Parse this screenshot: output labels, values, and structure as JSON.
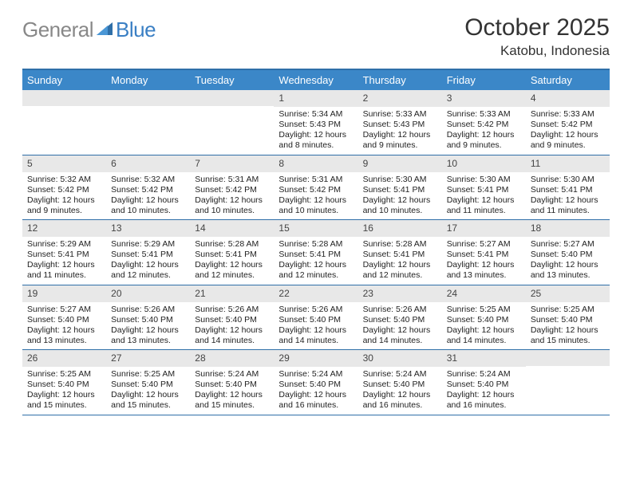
{
  "logo": {
    "text1": "General",
    "text2": "Blue"
  },
  "title": "October 2025",
  "location": "Katobu, Indonesia",
  "colors": {
    "header_blue": "#3b87c8",
    "border_blue": "#2f6fa8",
    "daynum_bg": "#e8e8e8",
    "logo_gray": "#888888",
    "logo_blue": "#3a7fc4"
  },
  "day_labels": [
    "Sunday",
    "Monday",
    "Tuesday",
    "Wednesday",
    "Thursday",
    "Friday",
    "Saturday"
  ],
  "weeks": [
    [
      {
        "num": "",
        "sunrise": "",
        "sunset": "",
        "daylight": ""
      },
      {
        "num": "",
        "sunrise": "",
        "sunset": "",
        "daylight": ""
      },
      {
        "num": "",
        "sunrise": "",
        "sunset": "",
        "daylight": ""
      },
      {
        "num": "1",
        "sunrise": "Sunrise: 5:34 AM",
        "sunset": "Sunset: 5:43 PM",
        "daylight": "Daylight: 12 hours and 8 minutes."
      },
      {
        "num": "2",
        "sunrise": "Sunrise: 5:33 AM",
        "sunset": "Sunset: 5:43 PM",
        "daylight": "Daylight: 12 hours and 9 minutes."
      },
      {
        "num": "3",
        "sunrise": "Sunrise: 5:33 AM",
        "sunset": "Sunset: 5:42 PM",
        "daylight": "Daylight: 12 hours and 9 minutes."
      },
      {
        "num": "4",
        "sunrise": "Sunrise: 5:33 AM",
        "sunset": "Sunset: 5:42 PM",
        "daylight": "Daylight: 12 hours and 9 minutes."
      }
    ],
    [
      {
        "num": "5",
        "sunrise": "Sunrise: 5:32 AM",
        "sunset": "Sunset: 5:42 PM",
        "daylight": "Daylight: 12 hours and 9 minutes."
      },
      {
        "num": "6",
        "sunrise": "Sunrise: 5:32 AM",
        "sunset": "Sunset: 5:42 PM",
        "daylight": "Daylight: 12 hours and 10 minutes."
      },
      {
        "num": "7",
        "sunrise": "Sunrise: 5:31 AM",
        "sunset": "Sunset: 5:42 PM",
        "daylight": "Daylight: 12 hours and 10 minutes."
      },
      {
        "num": "8",
        "sunrise": "Sunrise: 5:31 AM",
        "sunset": "Sunset: 5:42 PM",
        "daylight": "Daylight: 12 hours and 10 minutes."
      },
      {
        "num": "9",
        "sunrise": "Sunrise: 5:30 AM",
        "sunset": "Sunset: 5:41 PM",
        "daylight": "Daylight: 12 hours and 10 minutes."
      },
      {
        "num": "10",
        "sunrise": "Sunrise: 5:30 AM",
        "sunset": "Sunset: 5:41 PM",
        "daylight": "Daylight: 12 hours and 11 minutes."
      },
      {
        "num": "11",
        "sunrise": "Sunrise: 5:30 AM",
        "sunset": "Sunset: 5:41 PM",
        "daylight": "Daylight: 12 hours and 11 minutes."
      }
    ],
    [
      {
        "num": "12",
        "sunrise": "Sunrise: 5:29 AM",
        "sunset": "Sunset: 5:41 PM",
        "daylight": "Daylight: 12 hours and 11 minutes."
      },
      {
        "num": "13",
        "sunrise": "Sunrise: 5:29 AM",
        "sunset": "Sunset: 5:41 PM",
        "daylight": "Daylight: 12 hours and 12 minutes."
      },
      {
        "num": "14",
        "sunrise": "Sunrise: 5:28 AM",
        "sunset": "Sunset: 5:41 PM",
        "daylight": "Daylight: 12 hours and 12 minutes."
      },
      {
        "num": "15",
        "sunrise": "Sunrise: 5:28 AM",
        "sunset": "Sunset: 5:41 PM",
        "daylight": "Daylight: 12 hours and 12 minutes."
      },
      {
        "num": "16",
        "sunrise": "Sunrise: 5:28 AM",
        "sunset": "Sunset: 5:41 PM",
        "daylight": "Daylight: 12 hours and 12 minutes."
      },
      {
        "num": "17",
        "sunrise": "Sunrise: 5:27 AM",
        "sunset": "Sunset: 5:41 PM",
        "daylight": "Daylight: 12 hours and 13 minutes."
      },
      {
        "num": "18",
        "sunrise": "Sunrise: 5:27 AM",
        "sunset": "Sunset: 5:40 PM",
        "daylight": "Daylight: 12 hours and 13 minutes."
      }
    ],
    [
      {
        "num": "19",
        "sunrise": "Sunrise: 5:27 AM",
        "sunset": "Sunset: 5:40 PM",
        "daylight": "Daylight: 12 hours and 13 minutes."
      },
      {
        "num": "20",
        "sunrise": "Sunrise: 5:26 AM",
        "sunset": "Sunset: 5:40 PM",
        "daylight": "Daylight: 12 hours and 13 minutes."
      },
      {
        "num": "21",
        "sunrise": "Sunrise: 5:26 AM",
        "sunset": "Sunset: 5:40 PM",
        "daylight": "Daylight: 12 hours and 14 minutes."
      },
      {
        "num": "22",
        "sunrise": "Sunrise: 5:26 AM",
        "sunset": "Sunset: 5:40 PM",
        "daylight": "Daylight: 12 hours and 14 minutes."
      },
      {
        "num": "23",
        "sunrise": "Sunrise: 5:26 AM",
        "sunset": "Sunset: 5:40 PM",
        "daylight": "Daylight: 12 hours and 14 minutes."
      },
      {
        "num": "24",
        "sunrise": "Sunrise: 5:25 AM",
        "sunset": "Sunset: 5:40 PM",
        "daylight": "Daylight: 12 hours and 14 minutes."
      },
      {
        "num": "25",
        "sunrise": "Sunrise: 5:25 AM",
        "sunset": "Sunset: 5:40 PM",
        "daylight": "Daylight: 12 hours and 15 minutes."
      }
    ],
    [
      {
        "num": "26",
        "sunrise": "Sunrise: 5:25 AM",
        "sunset": "Sunset: 5:40 PM",
        "daylight": "Daylight: 12 hours and 15 minutes."
      },
      {
        "num": "27",
        "sunrise": "Sunrise: 5:25 AM",
        "sunset": "Sunset: 5:40 PM",
        "daylight": "Daylight: 12 hours and 15 minutes."
      },
      {
        "num": "28",
        "sunrise": "Sunrise: 5:24 AM",
        "sunset": "Sunset: 5:40 PM",
        "daylight": "Daylight: 12 hours and 15 minutes."
      },
      {
        "num": "29",
        "sunrise": "Sunrise: 5:24 AM",
        "sunset": "Sunset: 5:40 PM",
        "daylight": "Daylight: 12 hours and 16 minutes."
      },
      {
        "num": "30",
        "sunrise": "Sunrise: 5:24 AM",
        "sunset": "Sunset: 5:40 PM",
        "daylight": "Daylight: 12 hours and 16 minutes."
      },
      {
        "num": "31",
        "sunrise": "Sunrise: 5:24 AM",
        "sunset": "Sunset: 5:40 PM",
        "daylight": "Daylight: 12 hours and 16 minutes."
      },
      {
        "num": "",
        "sunrise": "",
        "sunset": "",
        "daylight": ""
      }
    ]
  ]
}
